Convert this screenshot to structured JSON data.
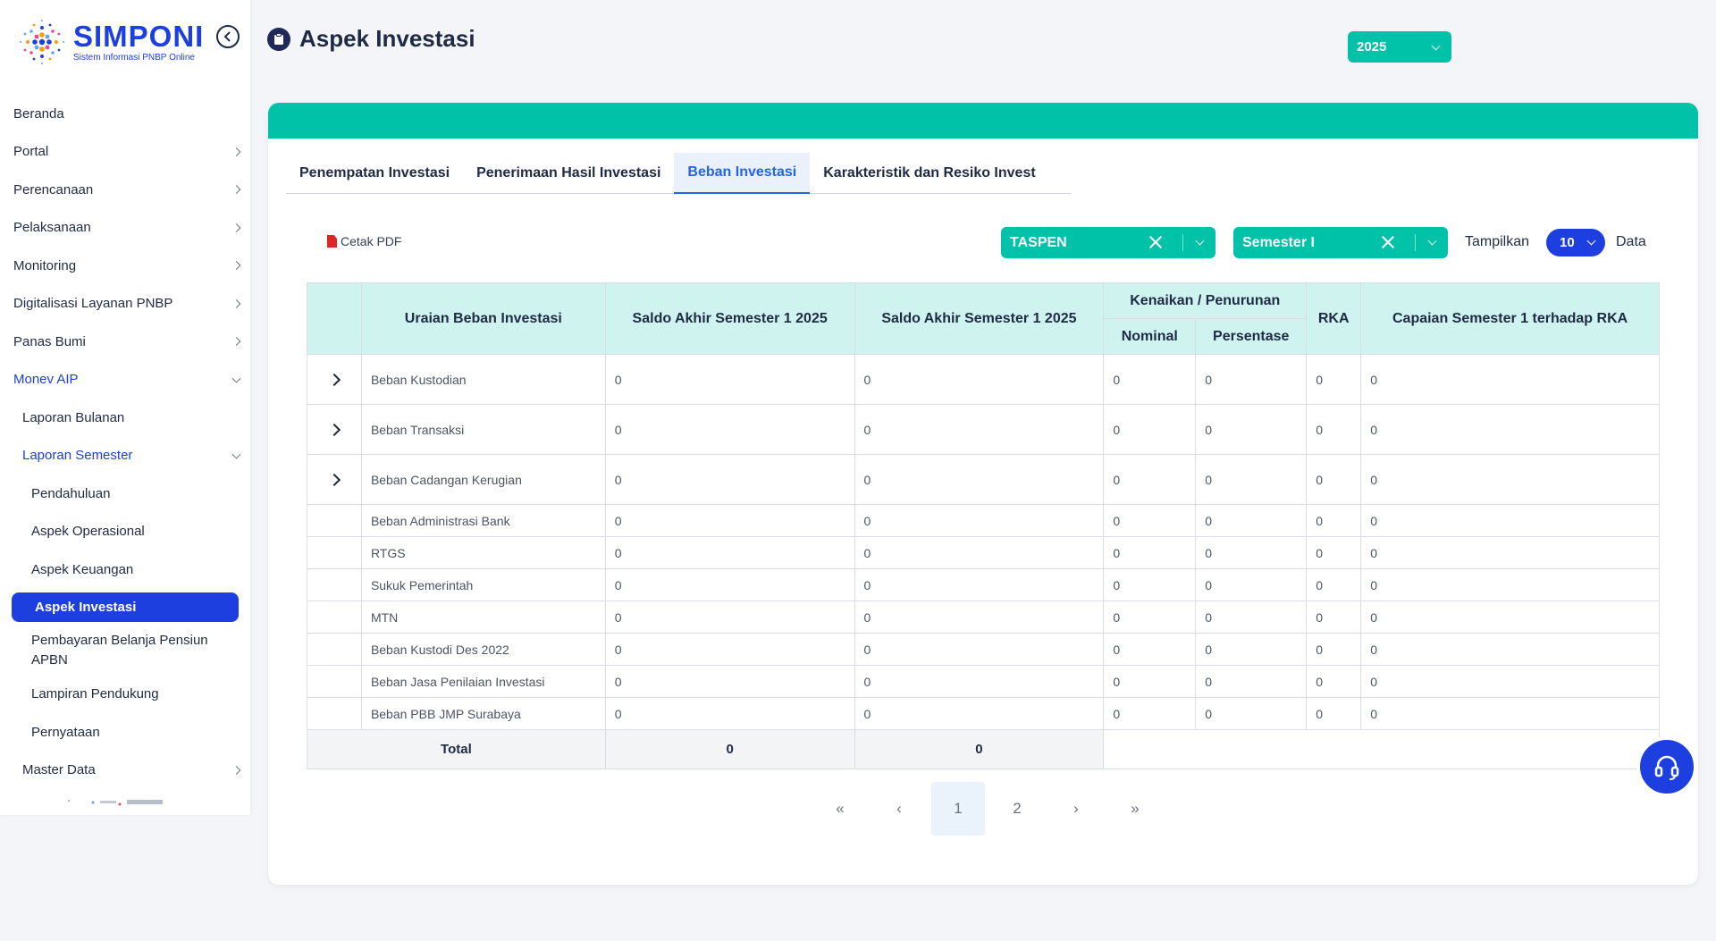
{
  "logo": {
    "title": "SIMPONI",
    "subtitle": "Sistem Informasi PNBP Online"
  },
  "sidebar": {
    "items": [
      {
        "label": "Beranda"
      },
      {
        "label": "Portal"
      },
      {
        "label": "Perencanaan"
      },
      {
        "label": "Pelaksanaan"
      },
      {
        "label": "Monitoring"
      },
      {
        "label": "Digitalisasi Layanan PNBP"
      },
      {
        "label": "Panas Bumi"
      },
      {
        "label": "Monev AIP"
      },
      {
        "label": "Laporan Bulanan"
      },
      {
        "label": "Laporan Semester"
      },
      {
        "label": "Pendahuluan"
      },
      {
        "label": "Aspek Operasional"
      },
      {
        "label": "Aspek Keuangan"
      },
      {
        "label": "Aspek Investasi"
      },
      {
        "label": "Pembayaran Belanja Pensiun APBN"
      },
      {
        "label": "Lampiran Pendukung"
      },
      {
        "label": "Pernyataan"
      },
      {
        "label": "Master Data"
      }
    ]
  },
  "header": {
    "title": "Aspek Investasi",
    "year": "2025"
  },
  "tabs": [
    {
      "label": "Penempatan Investasi"
    },
    {
      "label": "Penerimaan Hasil Investasi"
    },
    {
      "label": "Beban Investasi"
    },
    {
      "label": "Karakteristik dan Resiko Invest"
    }
  ],
  "toolbar": {
    "pdf_label": "Cetak PDF",
    "filter1": "TASPEN",
    "filter2": "Semester I",
    "show_prefix": "Tampilkan",
    "show_value": "10",
    "show_suffix": "Data"
  },
  "table": {
    "headers": {
      "uraian": "Uraian Beban Investasi",
      "saldo1": "Saldo Akhir Semester 1 2025",
      "saldo2": "Saldo Akhir Semester 1 2025",
      "kenaikan": "Kenaikan / Penurunan",
      "nominal": "Nominal",
      "persentase": "Persentase",
      "rka": "RKA",
      "capaian": "Capaian Semester 1 terhadap RKA"
    },
    "rows": [
      {
        "name": "Beban Kustodian",
        "s1": "0",
        "s2": "0",
        "nominal": "0",
        "persen": "0",
        "rka": "0",
        "capaian": "0"
      },
      {
        "name": "Beban Transaksi",
        "s1": "0",
        "s2": "0",
        "nominal": "0",
        "persen": "0",
        "rka": "0",
        "capaian": "0"
      },
      {
        "name": "Beban Cadangan Kerugian",
        "s1": "0",
        "s2": "0",
        "nominal": "0",
        "persen": "0",
        "rka": "0",
        "capaian": "0"
      },
      {
        "name": "Beban Administrasi Bank",
        "s1": "0",
        "s2": "0",
        "nominal": "0",
        "persen": "0",
        "rka": "0",
        "capaian": "0"
      },
      {
        "name": "RTGS",
        "s1": "0",
        "s2": "0",
        "nominal": "0",
        "persen": "0",
        "rka": "0",
        "capaian": "0"
      },
      {
        "name": "Sukuk Pemerintah",
        "s1": "0",
        "s2": "0",
        "nominal": "0",
        "persen": "0",
        "rka": "0",
        "capaian": "0"
      },
      {
        "name": "MTN",
        "s1": "0",
        "s2": "0",
        "nominal": "0",
        "persen": "0",
        "rka": "0",
        "capaian": "0"
      },
      {
        "name": "Beban Kustodi Des 2022",
        "s1": "0",
        "s2": "0",
        "nominal": "0",
        "persen": "0",
        "rka": "0",
        "capaian": "0"
      },
      {
        "name": "Beban Jasa Penilaian Investasi",
        "s1": "0",
        "s2": "0",
        "nominal": "0",
        "persen": "0",
        "rka": "0",
        "capaian": "0"
      },
      {
        "name": "Beban PBB JMP Surabaya",
        "s1": "0",
        "s2": "0",
        "nominal": "0",
        "persen": "0",
        "rka": "0",
        "capaian": "0"
      }
    ],
    "total": {
      "label": "Total",
      "s1": "0",
      "s2": "0"
    }
  },
  "pagination": {
    "first": "«",
    "prev": "‹",
    "pages": [
      "1",
      "2"
    ],
    "next": "›",
    "last": "»"
  },
  "colors": {
    "teal": "#00c2a8",
    "blue": "#1d3fe0",
    "header_bg": "#cff4ef"
  }
}
